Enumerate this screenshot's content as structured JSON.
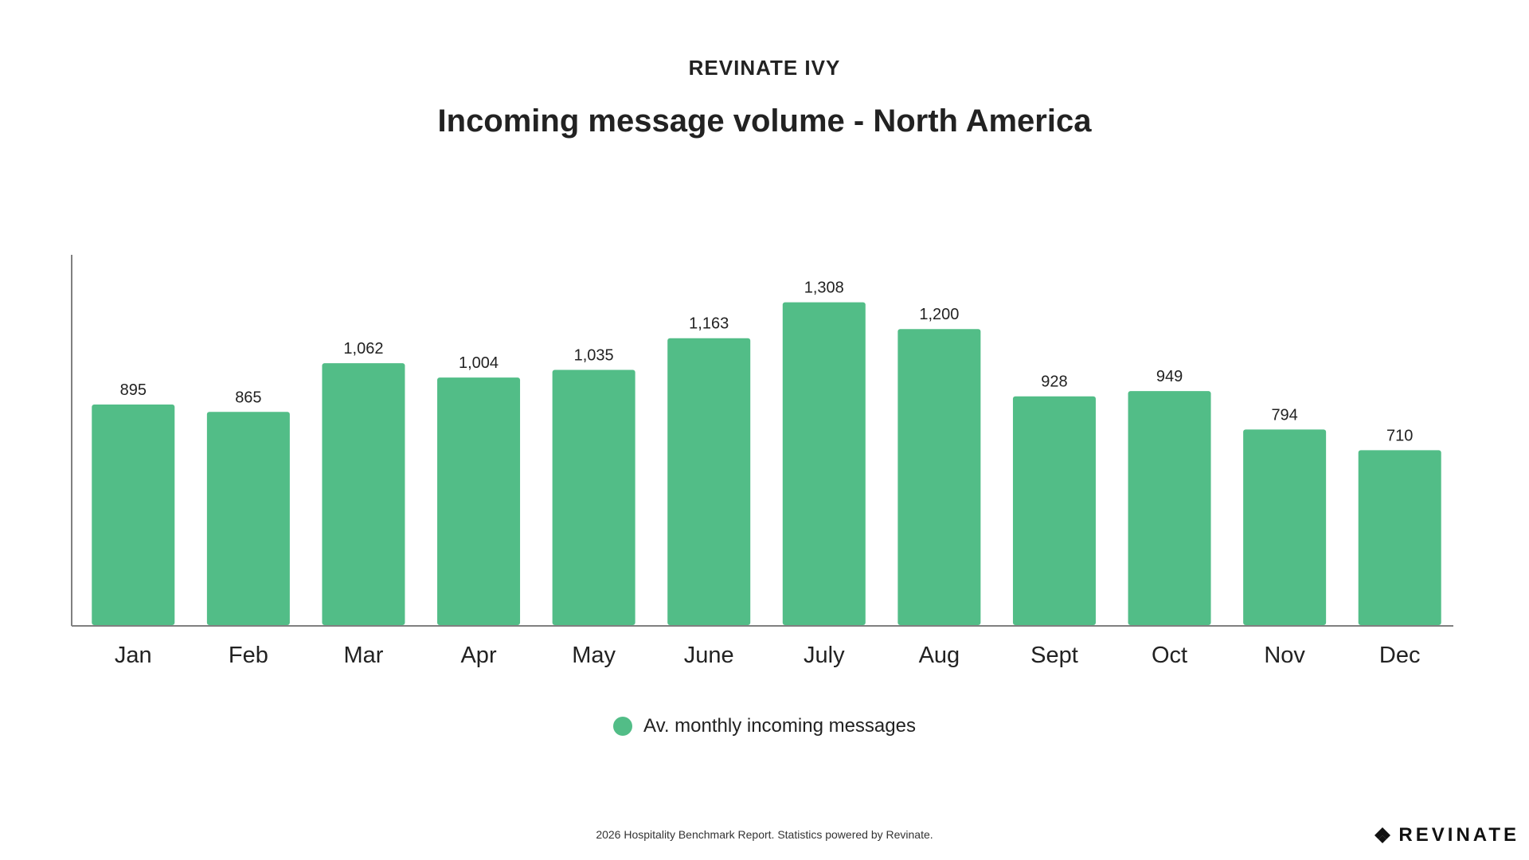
{
  "header": {
    "brand": "REVINATE IVY"
  },
  "chart_data": {
    "type": "bar",
    "title": "Incoming message volume - North America",
    "xlabel": "",
    "ylabel": "",
    "categories": [
      "Jan",
      "Feb",
      "Mar",
      "Apr",
      "May",
      "June",
      "July",
      "Aug",
      "Sept",
      "Oct",
      "Nov",
      "Dec"
    ],
    "series": [
      {
        "name": "Av. monthly incoming messages",
        "values": [
          895,
          865,
          1062,
          1004,
          1035,
          1163,
          1308,
          1200,
          928,
          949,
          794,
          710
        ],
        "labels": [
          "895",
          "865",
          "1,062",
          "1,004",
          "1,035",
          "1,163",
          "1,308",
          "1,200",
          "928",
          "949",
          "794",
          "710"
        ]
      }
    ],
    "ylim": [
      0,
      1500
    ],
    "grid": false,
    "legend": "bottom-center",
    "bar_color": "#52bd87"
  },
  "legend": {
    "label": "Av. monthly incoming messages",
    "color": "#52bd87"
  },
  "footer": {
    "note": "2026 Hospitality Benchmark Report. Statistics powered by Revinate.",
    "logo_text": "REVINATE",
    "logo_icon": "revinate-logo-icon"
  }
}
